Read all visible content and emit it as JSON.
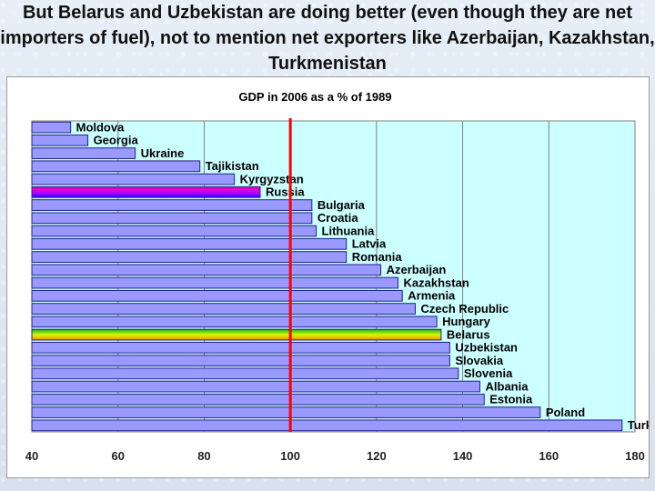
{
  "headline": "But Belarus and Uzbekistan are doing better (even though they are net importers of fuel), not to mention net exporters like Azerbaijan, Kazakhstan, Turkmenistan",
  "colors": {
    "plot_area": "#ccffff",
    "bar": "#9999ff",
    "bar_stroke": "#22228a",
    "reference_line": "#ff0000",
    "grid": "#808080",
    "russia_gradient": [
      "#ff00aa",
      "#c000ff",
      "#3300ff"
    ],
    "belarus_gradient": [
      "#22aa22",
      "#ccff00",
      "#ff8800"
    ]
  },
  "chart_data": {
    "type": "bar",
    "orientation": "horizontal",
    "title": "GDP in 2006 as a % of 1989",
    "xlim": [
      40,
      180
    ],
    "xticks": [
      40,
      60,
      80,
      100,
      120,
      140,
      160,
      180
    ],
    "reference_line": 100,
    "grid": "vertical",
    "categories": [
      "Moldova",
      "Georgia",
      "Ukraine",
      "Tajikistan",
      "Kyrgyzstan",
      "Russia",
      "Bulgaria",
      "Croatia",
      "Lithuania",
      "Latvia",
      "Romania",
      "Azerbaijan",
      "Kazakhstan",
      "Armenia",
      "Czech Republic",
      "Hungary",
      "Belarus",
      "Uzbekistan",
      "Slovakia",
      "Slovenia",
      "Albania",
      "Estonia",
      "Poland",
      "Turkmenistan"
    ],
    "values": [
      49,
      53,
      64,
      79,
      87,
      93,
      105,
      105,
      106,
      113,
      113,
      121,
      125,
      126,
      129,
      134,
      135,
      137,
      137,
      139,
      144,
      145,
      158,
      177
    ],
    "highlighted": [
      "Russia",
      "Belarus"
    ]
  }
}
